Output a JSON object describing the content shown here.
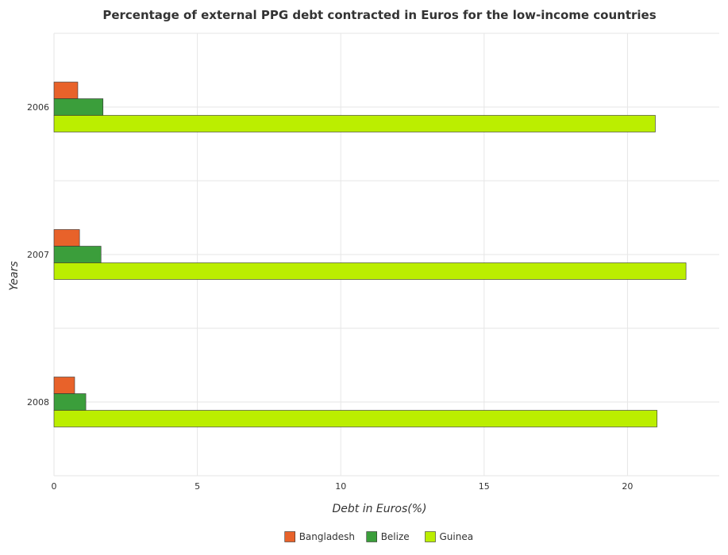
{
  "chart_data": {
    "type": "bar",
    "orientation": "horizontal",
    "title": "Percentage of external PPG debt contracted in Euros for the low-income countries",
    "xlabel": "Debt in Euros(%)",
    "ylabel": "Years",
    "categories": [
      "2006",
      "2007",
      "2008"
    ],
    "series": [
      {
        "name": "Bangladesh",
        "color": "#e8622a",
        "values": [
          0.83,
          0.89,
          0.72
        ]
      },
      {
        "name": "Belize",
        "color": "#3b9e3b",
        "values": [
          1.71,
          1.64,
          1.11
        ]
      },
      {
        "name": "Guinea",
        "color": "#bbee00",
        "values": [
          20.97,
          22.04,
          21.03
        ]
      }
    ],
    "xlim": [
      0,
      23.2
    ],
    "xticks": [
      0,
      5,
      10,
      15,
      20
    ],
    "xtick_labels": [
      "0",
      "5",
      "10",
      "15",
      "20"
    ],
    "grid": true,
    "legend_position": "bottom"
  }
}
